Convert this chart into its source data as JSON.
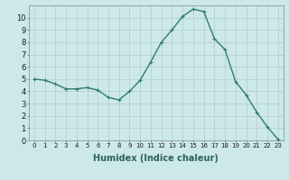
{
  "x": [
    0,
    1,
    2,
    3,
    4,
    5,
    6,
    7,
    8,
    9,
    10,
    11,
    12,
    13,
    14,
    15,
    16,
    17,
    18,
    19,
    20,
    21,
    22,
    23
  ],
  "y": [
    5.0,
    4.9,
    4.6,
    4.2,
    4.2,
    4.3,
    4.1,
    3.5,
    3.3,
    4.0,
    4.9,
    6.4,
    8.0,
    9.0,
    10.1,
    10.7,
    10.5,
    8.3,
    7.4,
    4.8,
    3.7,
    2.3,
    1.1,
    0.1
  ],
  "line_color": "#2e7d6e",
  "marker": "+",
  "marker_size": 3,
  "line_width": 1.0,
  "bg_color": "#cce8e8",
  "grid_color": "#b0cccc",
  "xlabel": "Humidex (Indice chaleur)",
  "xlabel_fontsize": 7,
  "xlabel_fontweight": "bold",
  "xtick_labels": [
    "0",
    "1",
    "2",
    "3",
    "4",
    "5",
    "6",
    "7",
    "8",
    "9",
    "10",
    "11",
    "12",
    "13",
    "14",
    "15",
    "16",
    "17",
    "18",
    "19",
    "20",
    "21",
    "22",
    "23"
  ],
  "ytick_values": [
    0,
    1,
    2,
    3,
    4,
    5,
    6,
    7,
    8,
    9,
    10
  ],
  "xlim": [
    -0.5,
    23.5
  ],
  "ylim": [
    0,
    11
  ],
  "xtick_fontsize": 5,
  "ytick_fontsize": 6
}
